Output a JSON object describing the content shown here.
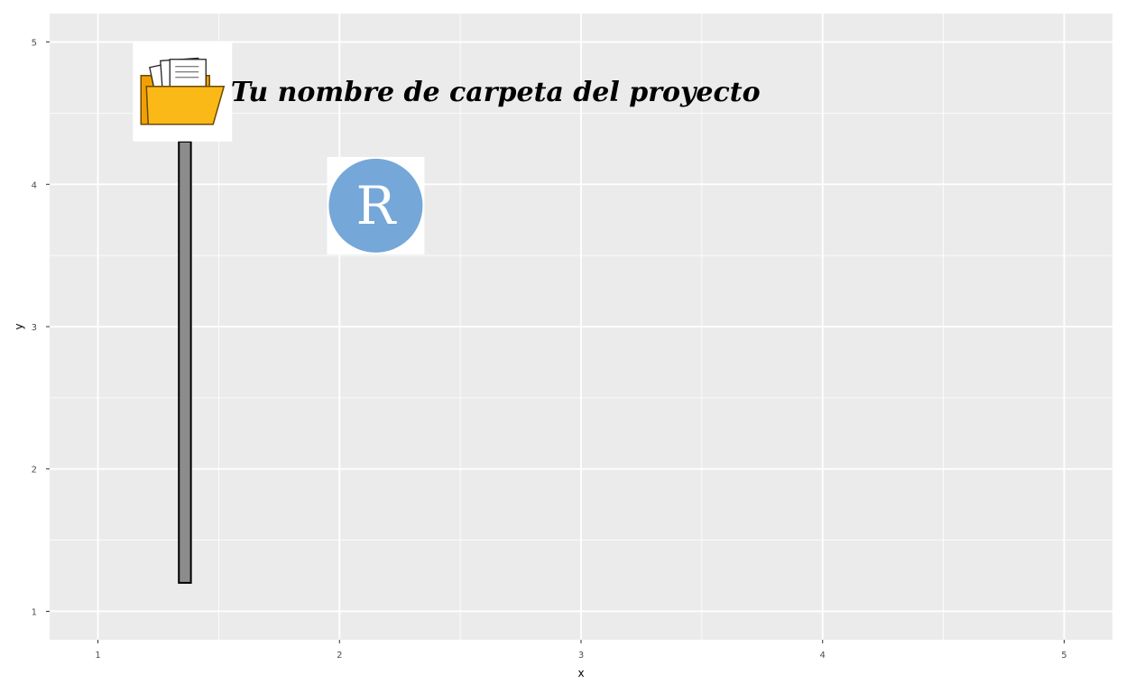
{
  "chart_data": {
    "type": "bar",
    "xlabel": "x",
    "ylabel": "y",
    "xlim": [
      0.8,
      5.2
    ],
    "ylim": [
      0.8,
      5.2
    ],
    "x_ticks": [
      "1",
      "2",
      "3",
      "4",
      "5"
    ],
    "y_ticks": [
      "1",
      "2",
      "3",
      "4",
      "5"
    ],
    "grid": true,
    "bars": [
      {
        "x": 1.36,
        "width": 0.05,
        "ymin": 1.2,
        "ymax": 4.3
      }
    ],
    "annotations": [
      {
        "kind": "text",
        "label": "Tu nombre de carpeta del proyecto",
        "x": 1.55,
        "y": 4.65
      },
      {
        "kind": "image",
        "icon": "folder-icon",
        "x": 1.35,
        "y": 4.65
      },
      {
        "kind": "image",
        "icon": "r-logo-icon",
        "letter": "R",
        "x": 2.15,
        "y": 3.85
      }
    ]
  },
  "colors": {
    "panel_bg": "#ebebeb",
    "grid_major": "#ffffff",
    "bar_fill": "#8c8c8c",
    "bar_outline": "#000000",
    "r_logo": "#75a7d9",
    "folder_front": "#fbb917",
    "folder_back": "#f29f05"
  }
}
